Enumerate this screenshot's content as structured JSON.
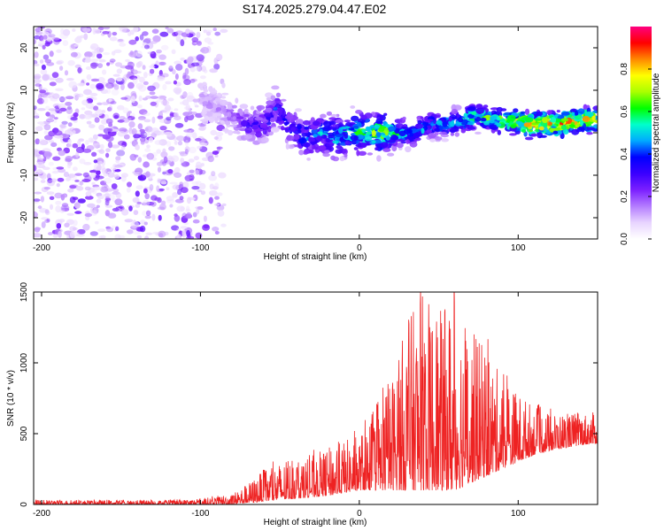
{
  "title": "S174.2025.279.04.47.E02",
  "colors": {
    "axis": "#000000",
    "snr_line": "#ee2222",
    "colormap": [
      "#ffffff",
      "#e8d4ff",
      "#b47cff",
      "#7b1fff",
      "#3a00ff",
      "#0000ff",
      "#00aaff",
      "#00ffcc",
      "#00ff00",
      "#aaff00",
      "#ffff00",
      "#ff8800",
      "#ff0000",
      "#ff0080"
    ]
  },
  "chart_data": [
    {
      "type": "heatmap",
      "title": "S174.2025.279.04.47.E02",
      "xlabel": "Height of straight line (km)",
      "ylabel": "Frequency (Hz)",
      "xlim": [
        -205,
        150
      ],
      "ylim": [
        -25,
        25
      ],
      "xticks": [
        -200,
        -100,
        0,
        100
      ],
      "xtick_labels": [
        "-200",
        "-100",
        "0",
        "100"
      ],
      "yticks": [
        -20,
        -10,
        0,
        10,
        20
      ],
      "ytick_labels": [
        "-20",
        "-10",
        "0",
        "10",
        "20"
      ],
      "colorbar": {
        "label": "Normalized spectral amplitude",
        "range": [
          0,
          1
        ],
        "ticks": [
          0.0,
          0.2,
          0.4,
          0.6,
          0.8
        ],
        "tick_labels": [
          "0.0",
          "0.2",
          "0.4",
          "0.6",
          "0.8"
        ]
      },
      "noise_region_x": [
        -205,
        -85
      ],
      "ridge": {
        "x": [
          -100,
          -90,
          -80,
          -70,
          -60,
          -52,
          -45,
          -35,
          -25,
          -15,
          -5,
          5,
          15,
          25,
          35,
          45,
          55,
          65,
          75,
          85,
          95,
          105,
          115,
          125,
          135,
          145
        ],
        "freq": [
          8,
          6,
          4,
          2,
          2,
          6,
          2,
          -1,
          0,
          -1,
          0,
          0,
          0,
          0,
          0,
          2,
          2,
          3,
          4,
          3,
          3,
          2,
          2,
          2,
          3,
          3
        ],
        "amplitude": [
          0.15,
          0.15,
          0.2,
          0.3,
          0.35,
          0.4,
          0.4,
          0.45,
          0.5,
          0.55,
          0.6,
          0.65,
          0.75,
          0.6,
          0.55,
          0.5,
          0.55,
          0.6,
          0.65,
          0.7,
          0.8,
          0.85,
          0.9,
          0.9,
          0.9,
          0.85
        ]
      }
    },
    {
      "type": "line",
      "xlabel": "Height of straight line (km)",
      "ylabel": "SNR (10 * v/v)",
      "xlim": [
        -205,
        150
      ],
      "ylim": [
        0,
        1500
      ],
      "xticks": [
        -200,
        -100,
        0,
        100
      ],
      "xtick_labels": [
        "-200",
        "-100",
        "0",
        "100"
      ],
      "yticks": [
        0,
        500,
        1000,
        1500
      ],
      "ytick_labels": [
        "0",
        "500",
        "1000",
        "1500"
      ],
      "envelope": {
        "x": [
          -205,
          -120,
          -100,
          -80,
          -70,
          -60,
          -50,
          -40,
          -30,
          -20,
          -10,
          0,
          10,
          20,
          30,
          40,
          50,
          60,
          70,
          80,
          90,
          100,
          110,
          120,
          130,
          140,
          150
        ],
        "low": [
          0,
          0,
          0,
          0,
          10,
          20,
          30,
          40,
          50,
          60,
          80,
          100,
          100,
          100,
          100,
          100,
          100,
          100,
          150,
          200,
          250,
          300,
          350,
          380,
          400,
          420,
          430
        ],
        "high": [
          30,
          30,
          40,
          80,
          150,
          250,
          300,
          320,
          350,
          400,
          450,
          500,
          650,
          900,
          1300,
          1500,
          1350,
          1500,
          1250,
          1100,
          900,
          800,
          700,
          650,
          650,
          650,
          650
        ]
      }
    }
  ]
}
